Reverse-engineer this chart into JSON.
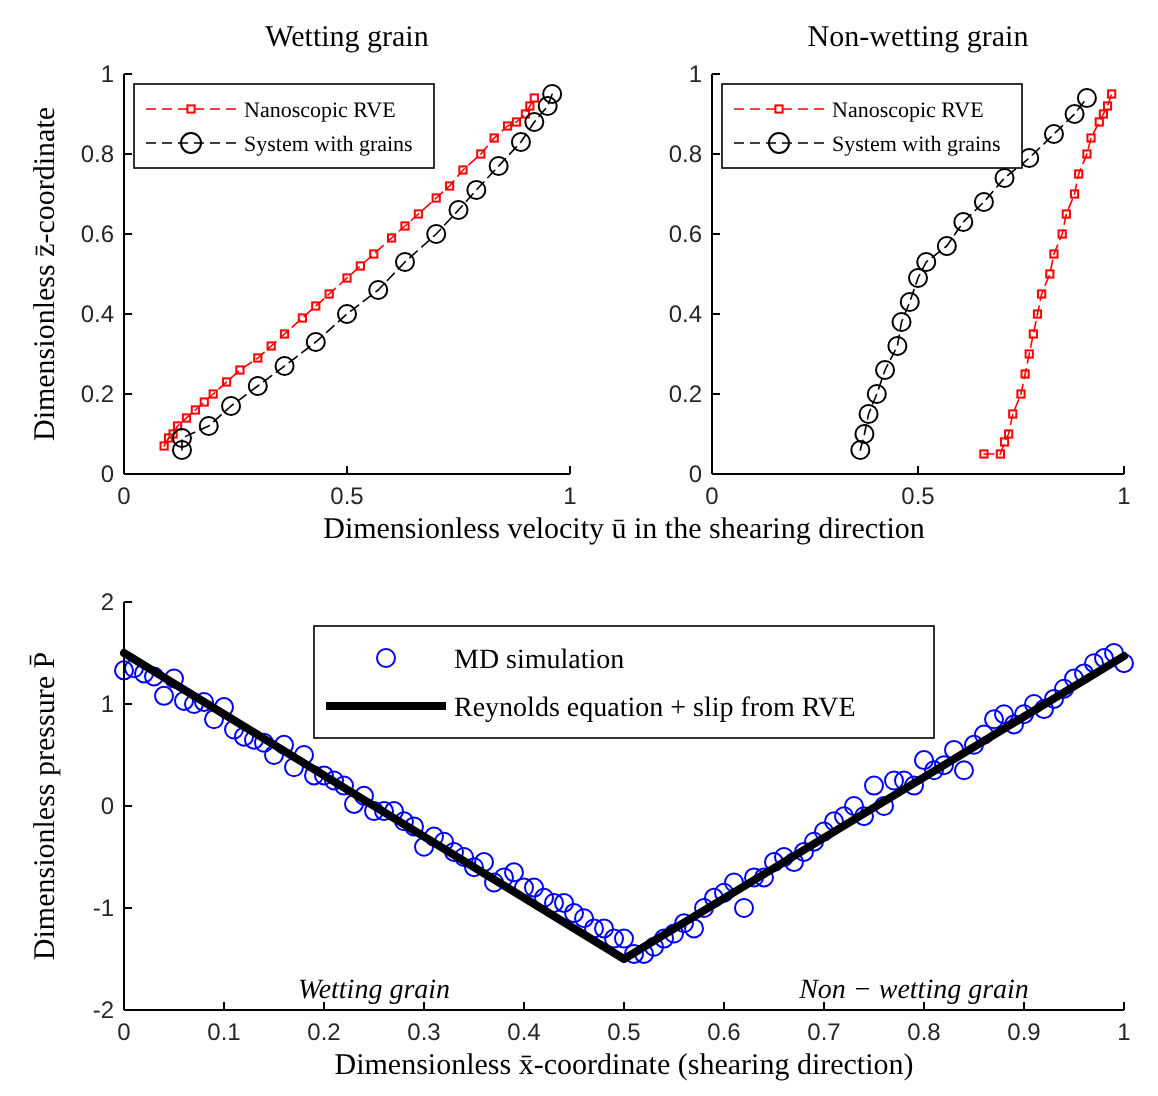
{
  "chart_data": [
    {
      "type": "line",
      "title": "Wetting grain",
      "xlabel": "Dimensionless velocity ū in the shearing direction",
      "ylabel": "Dimensionless z̄-coordinate",
      "xlim": [
        0,
        1
      ],
      "ylim": [
        0,
        1
      ],
      "xticks": [
        0,
        0.5,
        1
      ],
      "yticks": [
        0,
        0.2,
        0.4,
        0.6,
        0.8,
        1
      ],
      "legend": "top left",
      "series": [
        {
          "name": "Nanoscopic RVE",
          "color": "#ff0000",
          "marker": "square",
          "line_style": "dashed",
          "x": [
            0.09,
            0.1,
            0.11,
            0.12,
            0.14,
            0.16,
            0.18,
            0.2,
            0.23,
            0.26,
            0.3,
            0.33,
            0.36,
            0.4,
            0.43,
            0.46,
            0.5,
            0.53,
            0.56,
            0.6,
            0.63,
            0.66,
            0.7,
            0.73,
            0.76,
            0.8,
            0.83,
            0.86,
            0.88,
            0.9,
            0.91,
            0.92
          ],
          "values": [
            0.07,
            0.09,
            0.1,
            0.12,
            0.14,
            0.16,
            0.18,
            0.2,
            0.23,
            0.26,
            0.29,
            0.32,
            0.35,
            0.39,
            0.42,
            0.45,
            0.49,
            0.52,
            0.55,
            0.59,
            0.62,
            0.65,
            0.69,
            0.72,
            0.76,
            0.8,
            0.84,
            0.87,
            0.88,
            0.9,
            0.92,
            0.94
          ]
        },
        {
          "name": "System with grains",
          "color": "#000000",
          "marker": "circle",
          "line_style": "dashed",
          "x": [
            0.13,
            0.13,
            0.19,
            0.24,
            0.3,
            0.36,
            0.43,
            0.5,
            0.57,
            0.63,
            0.7,
            0.75,
            0.79,
            0.84,
            0.89,
            0.92,
            0.95,
            0.96
          ],
          "values": [
            0.06,
            0.09,
            0.12,
            0.17,
            0.22,
            0.27,
            0.33,
            0.4,
            0.46,
            0.53,
            0.6,
            0.66,
            0.71,
            0.77,
            0.83,
            0.88,
            0.92,
            0.95
          ]
        }
      ]
    },
    {
      "type": "line",
      "title": "Non-wetting grain",
      "xlim": [
        0,
        1
      ],
      "ylim": [
        0,
        1
      ],
      "xticks": [
        0,
        0.5,
        1
      ],
      "yticks": [
        0,
        0.2,
        0.4,
        0.6,
        0.8,
        1
      ],
      "legend": "top left",
      "series": [
        {
          "name": "Nanoscopic RVE",
          "color": "#ff0000",
          "marker": "square",
          "line_style": "dashed",
          "x": [
            0.66,
            0.7,
            0.71,
            0.72,
            0.73,
            0.75,
            0.76,
            0.77,
            0.78,
            0.79,
            0.8,
            0.82,
            0.83,
            0.85,
            0.86,
            0.88,
            0.89,
            0.91,
            0.92,
            0.94,
            0.95,
            0.96,
            0.97
          ],
          "values": [
            0.05,
            0.05,
            0.08,
            0.1,
            0.15,
            0.2,
            0.25,
            0.3,
            0.35,
            0.4,
            0.45,
            0.5,
            0.55,
            0.6,
            0.65,
            0.7,
            0.75,
            0.8,
            0.84,
            0.88,
            0.9,
            0.92,
            0.95
          ]
        },
        {
          "name": "System with grains",
          "color": "#000000",
          "marker": "circle",
          "line_style": "dashed",
          "x": [
            0.36,
            0.37,
            0.38,
            0.4,
            0.42,
            0.45,
            0.46,
            0.48,
            0.5,
            0.52,
            0.57,
            0.61,
            0.66,
            0.71,
            0.77,
            0.83,
            0.88,
            0.91
          ],
          "values": [
            0.06,
            0.1,
            0.15,
            0.2,
            0.26,
            0.32,
            0.38,
            0.43,
            0.49,
            0.53,
            0.57,
            0.63,
            0.68,
            0.74,
            0.79,
            0.85,
            0.9,
            0.94
          ]
        }
      ]
    },
    {
      "type": "scatter",
      "xlabel": "Dimensionless x̄-coordinate (shearing direction)",
      "ylabel": "Dimensionless pressure P̄",
      "xlim": [
        0,
        1
      ],
      "ylim": [
        -2,
        2
      ],
      "xticks": [
        0,
        0.1,
        0.2,
        0.3,
        0.4,
        0.5,
        0.6,
        0.7,
        0.8,
        0.9,
        1
      ],
      "yticks": [
        -2,
        -1,
        0,
        1,
        2
      ],
      "legend": "top",
      "annotations": [
        "Wetting grain",
        "Non − wetting grain"
      ],
      "series": [
        {
          "name": "MD simulation",
          "color": "#0000ff",
          "marker": "circle",
          "x": [
            0,
            0.01,
            0.02,
            0.03,
            0.04,
            0.05,
            0.06,
            0.07,
            0.08,
            0.09,
            0.1,
            0.11,
            0.12,
            0.13,
            0.14,
            0.15,
            0.16,
            0.17,
            0.18,
            0.19,
            0.2,
            0.21,
            0.22,
            0.23,
            0.24,
            0.25,
            0.26,
            0.27,
            0.28,
            0.29,
            0.3,
            0.31,
            0.32,
            0.33,
            0.34,
            0.35,
            0.36,
            0.37,
            0.38,
            0.39,
            0.4,
            0.41,
            0.42,
            0.43,
            0.44,
            0.45,
            0.46,
            0.47,
            0.48,
            0.49,
            0.5,
            0.51,
            0.52,
            0.53,
            0.54,
            0.55,
            0.56,
            0.57,
            0.58,
            0.59,
            0.6,
            0.61,
            0.62,
            0.63,
            0.64,
            0.65,
            0.66,
            0.67,
            0.68,
            0.69,
            0.7,
            0.71,
            0.72,
            0.73,
            0.74,
            0.75,
            0.76,
            0.77,
            0.78,
            0.79,
            0.8,
            0.81,
            0.82,
            0.83,
            0.84,
            0.85,
            0.86,
            0.87,
            0.88,
            0.89,
            0.9,
            0.91,
            0.92,
            0.93,
            0.94,
            0.95,
            0.96,
            0.97,
            0.98,
            0.99,
            1
          ],
          "values": [
            1.33,
            1.35,
            1.3,
            1.27,
            1.08,
            1.25,
            1.03,
            1,
            1.02,
            0.85,
            0.97,
            0.75,
            0.68,
            0.65,
            0.62,
            0.5,
            0.6,
            0.38,
            0.5,
            0.3,
            0.3,
            0.25,
            0.2,
            0.02,
            0.1,
            -0.05,
            -0.05,
            -0.05,
            -0.15,
            -0.2,
            -0.4,
            -0.3,
            -0.35,
            -0.45,
            -0.5,
            -0.6,
            -0.55,
            -0.75,
            -0.7,
            -0.65,
            -0.8,
            -0.8,
            -0.9,
            -0.95,
            -0.95,
            -1.05,
            -1.1,
            -1.2,
            -1.2,
            -1.3,
            -1.3,
            -1.45,
            -1.45,
            -1.38,
            -1.3,
            -1.25,
            -1.15,
            -1.2,
            -1,
            -0.9,
            -0.85,
            -0.75,
            -1,
            -0.7,
            -0.7,
            -0.55,
            -0.5,
            -0.55,
            -0.45,
            -0.35,
            -0.25,
            -0.15,
            -0.1,
            0,
            -0.1,
            0.2,
            0,
            0.25,
            0.25,
            0.2,
            0.45,
            0.35,
            0.4,
            0.55,
            0.35,
            0.6,
            0.7,
            0.85,
            0.9,
            0.8,
            0.9,
            1,
            0.95,
            1.05,
            1.15,
            1.25,
            1.3,
            1.4,
            1.45,
            1.5,
            1.4
          ]
        },
        {
          "name": "Reynolds equation + slip from RVE",
          "type": "line",
          "color": "#000000",
          "marker": "none",
          "line_style": "solid",
          "x": [
            0,
            0.5,
            1
          ],
          "values": [
            1.5,
            -1.5,
            1.47
          ]
        }
      ]
    }
  ]
}
